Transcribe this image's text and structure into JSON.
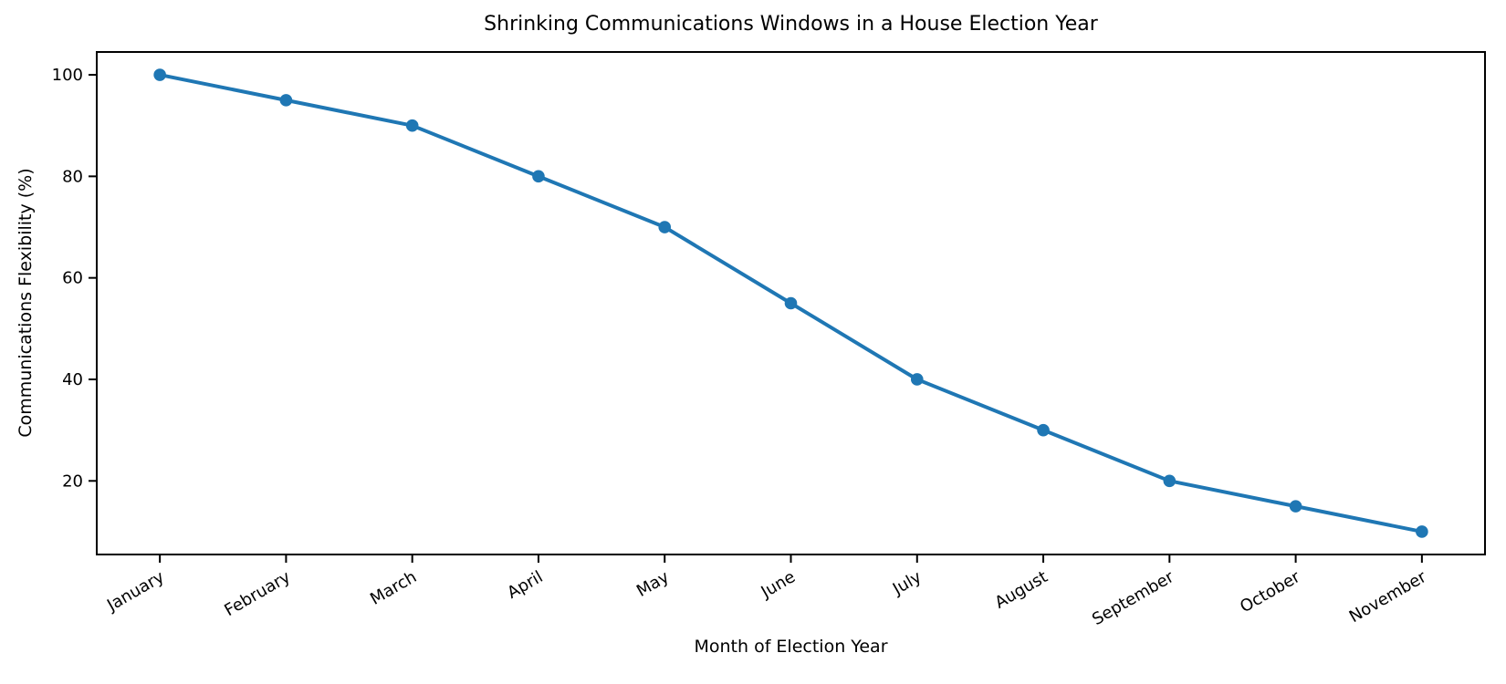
{
  "chart_data": {
    "type": "line",
    "title": "Shrinking Communications Windows in a House Election Year",
    "xlabel": "Month of Election Year",
    "ylabel": "Communications Flexibility (%)",
    "categories": [
      "January",
      "February",
      "March",
      "April",
      "May",
      "June",
      "July",
      "August",
      "September",
      "October",
      "November"
    ],
    "series": [
      {
        "name": "Communications Flexibility",
        "values": [
          100,
          95,
          90,
          80,
          70,
          55,
          40,
          30,
          20,
          15,
          10
        ]
      }
    ],
    "yticks": [
      20,
      40,
      60,
      80,
      100
    ],
    "xlim": [
      -0.5,
      10.5
    ],
    "ylim": [
      5.5,
      104.5
    ],
    "x_tick_rotation_deg": 30,
    "grid": false,
    "legend_position": "none",
    "colors": {
      "line": "#1f77b4",
      "marker": "#1f77b4",
      "spine": "#000000",
      "text": "#000000",
      "background": "#ffffff"
    }
  }
}
